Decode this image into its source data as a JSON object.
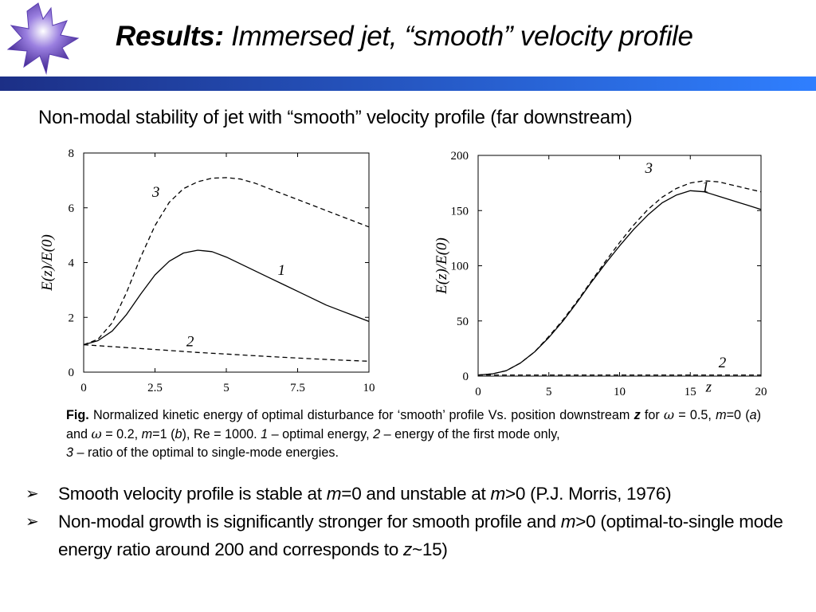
{
  "header": {
    "title_bold": "Results:",
    "title_rest": " Immersed jet, “smooth” velocity profile",
    "band_color_left": "#1c2f86",
    "band_color_right": "#2f7fff"
  },
  "subtitle": "Non-modal stability of jet with “smooth” velocity profile (far downstream)",
  "chart_data": [
    {
      "type": "line",
      "ylabel": "E(z)/E(0)",
      "xlabel": "",
      "xlim": [
        0,
        10
      ],
      "ylim": [
        0,
        8
      ],
      "xticks": [
        "0",
        "2.5",
        "5",
        "7.5",
        "10"
      ],
      "yticks": [
        "0",
        "2",
        "4",
        "6",
        "8"
      ],
      "grid": false,
      "series": [
        {
          "name": "1",
          "style": "solid",
          "x": [
            0,
            0.5,
            1,
            1.5,
            2,
            2.5,
            3,
            3.5,
            4,
            4.5,
            5,
            5.5,
            6,
            6.5,
            7,
            7.5,
            8,
            8.5,
            9,
            9.5,
            10
          ],
          "y": [
            1.0,
            1.15,
            1.5,
            2.1,
            2.85,
            3.55,
            4.05,
            4.35,
            4.45,
            4.4,
            4.2,
            3.95,
            3.7,
            3.45,
            3.2,
            2.95,
            2.7,
            2.45,
            2.25,
            2.05,
            1.85
          ]
        },
        {
          "name": "2",
          "style": "dashed",
          "x": [
            0,
            1,
            2,
            3,
            4,
            5,
            6,
            7,
            8,
            9,
            10
          ],
          "y": [
            1.0,
            0.93,
            0.86,
            0.79,
            0.72,
            0.66,
            0.6,
            0.54,
            0.49,
            0.44,
            0.4
          ]
        },
        {
          "name": "3",
          "style": "dashed",
          "x": [
            0,
            0.5,
            1,
            1.5,
            2,
            2.5,
            3,
            3.5,
            4,
            4.5,
            5,
            5.5,
            6,
            6.5,
            7,
            7.5,
            8,
            8.5,
            9,
            9.5,
            10
          ],
          "y": [
            1.0,
            1.2,
            1.8,
            2.9,
            4.2,
            5.35,
            6.2,
            6.7,
            6.95,
            7.08,
            7.1,
            7.05,
            6.9,
            6.7,
            6.5,
            6.3,
            6.1,
            5.9,
            5.7,
            5.5,
            5.3
          ]
        }
      ],
      "curve_labels": [
        "1",
        "2",
        "3"
      ]
    },
    {
      "type": "line",
      "ylabel": "E(z)/E(0)",
      "xlabel": "z",
      "xlim": [
        0,
        20
      ],
      "ylim": [
        0,
        200
      ],
      "xticks": [
        "0",
        "5",
        "10",
        "15",
        "20"
      ],
      "yticks": [
        "0",
        "50",
        "100",
        "150",
        "200"
      ],
      "grid": false,
      "series": [
        {
          "name": "1",
          "style": "solid",
          "x": [
            0,
            1,
            2,
            3,
            4,
            5,
            6,
            7,
            8,
            9,
            10,
            11,
            12,
            13,
            14,
            15,
            16,
            17,
            18,
            19,
            20
          ],
          "y": [
            1,
            2,
            5,
            12,
            22,
            35,
            50,
            67,
            85,
            102,
            118,
            133,
            146,
            157,
            164,
            168,
            167,
            163,
            159,
            155,
            151
          ]
        },
        {
          "name": "2",
          "style": "dashed",
          "x": [
            0,
            5,
            10,
            15,
            20
          ],
          "y": [
            1,
            1,
            1,
            1,
            1
          ]
        },
        {
          "name": "3",
          "style": "dashed",
          "x": [
            0,
            1,
            2,
            3,
            4,
            5,
            6,
            7,
            8,
            9,
            10,
            11,
            12,
            13,
            14,
            15,
            16,
            17,
            18,
            19,
            20
          ],
          "y": [
            1,
            2,
            5,
            12,
            22,
            36,
            51,
            68,
            86,
            104,
            121,
            137,
            151,
            162,
            170,
            175,
            177,
            176,
            173,
            170,
            167
          ]
        }
      ],
      "curve_labels": [
        "1",
        "2",
        "3"
      ]
    }
  ],
  "caption": {
    "fig": "Fig.",
    "t1": " Normalized kinetic energy of optimal disturbance for ‘smooth’ profile Vs. position downstream ",
    "z": "z",
    "t2": " for ",
    "omega": "ω",
    "t3": " = 0.5, ",
    "m": "m",
    "t4": "=0 (",
    "a": "a",
    "t5": ") and ",
    "t6": " = 0.2, ",
    "t7": "=1 (",
    "b": "b",
    "t8": "), Re = 1000. ",
    "one": "1",
    "t9": " – optimal energy, ",
    "two": "2",
    "t10": " – energy of the first mode only,",
    "three": "3",
    "t11": " – ratio of the optimal to single-mode energies."
  },
  "bullets": [
    {
      "pre": "Smooth velocity profile is stable at ",
      "m1": "m",
      "mid": "=0 and unstable at ",
      "m2": "m",
      "post": ">0 (P.J. Morris, 1976)"
    },
    {
      "pre": "Non-modal growth is significantly stronger for smooth profile and ",
      "m1": "m",
      "mid": ">0 (optimal-to-single mode energy ratio around 200 and corresponds to ",
      "z": "z",
      "post": "~15)"
    }
  ],
  "icons": {
    "bullet": "arrowhead-bullet-icon",
    "logo": "maple-leaf-logo"
  }
}
